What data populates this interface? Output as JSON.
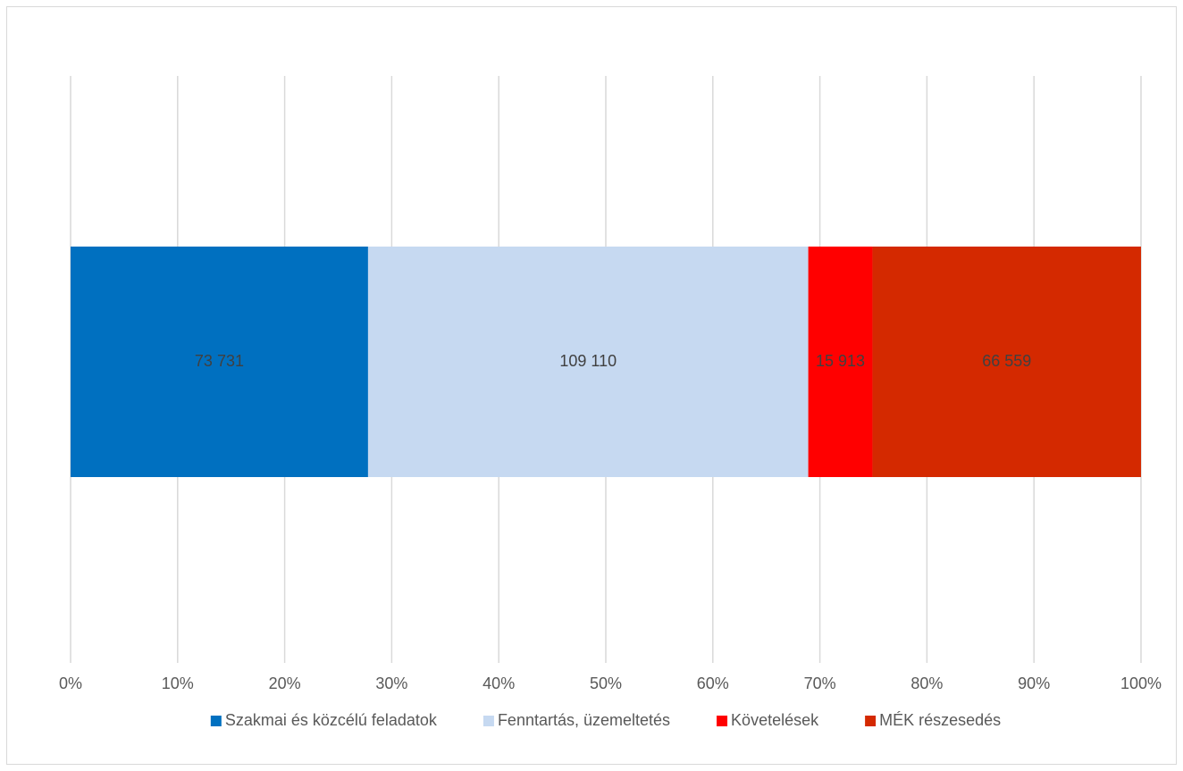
{
  "chart_data": {
    "type": "bar",
    "orientation": "horizontal",
    "stacking": "percent",
    "title": "",
    "xlabel": "",
    "ylabel": "",
    "xlim": [
      0,
      100
    ],
    "x_ticks": [
      "0%",
      "10%",
      "20%",
      "30%",
      "40%",
      "50%",
      "60%",
      "70%",
      "80%",
      "90%",
      "100%"
    ],
    "grid": true,
    "legend_position": "bottom",
    "series": [
      {
        "name": "Szakmai és közcélú feladatok",
        "value": 73731,
        "label": "73 731",
        "color": "#0070c0"
      },
      {
        "name": "Fenntartás, üzemeltetés",
        "value": 109110,
        "label": "109 110",
        "color": "#c6d9f1"
      },
      {
        "name": "Követelések",
        "value": 15913,
        "label": "15 913",
        "color": "#ff0000"
      },
      {
        "name": "MÉK részesedés",
        "value": 66559,
        "label": "66 559",
        "color": "#d42900"
      }
    ]
  }
}
